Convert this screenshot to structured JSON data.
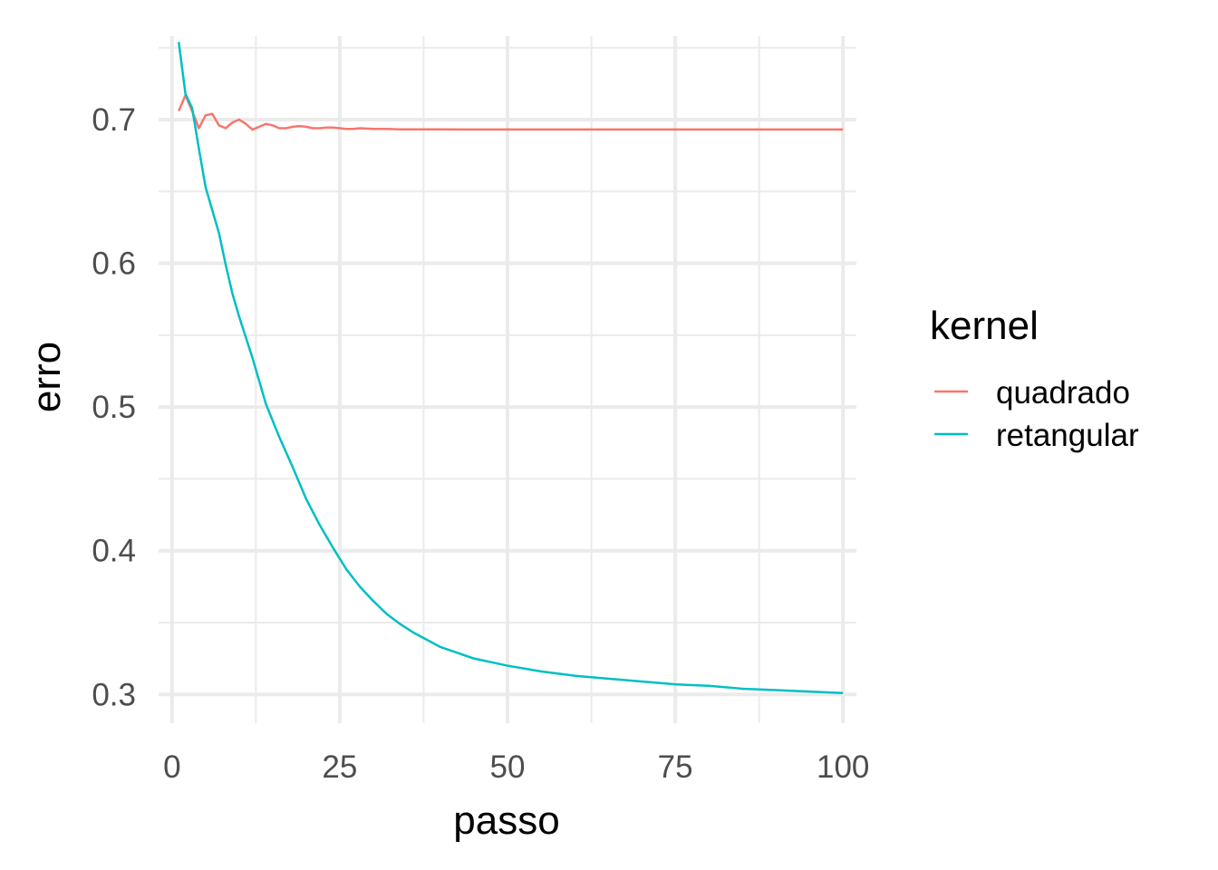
{
  "chart_data": {
    "type": "line",
    "title": "",
    "xlabel": "passo",
    "ylabel": "erro",
    "xlim": [
      -2,
      102
    ],
    "ylim": [
      0.28,
      0.758
    ],
    "x_ticks": [
      {
        "value": 0,
        "label": "0"
      },
      {
        "value": 25,
        "label": "25"
      },
      {
        "value": 50,
        "label": "50"
      },
      {
        "value": 75,
        "label": "75"
      },
      {
        "value": 100,
        "label": "100"
      }
    ],
    "x_minor_ticks": [
      12.5,
      37.5,
      62.5,
      87.5
    ],
    "y_ticks": [
      {
        "value": 0.3,
        "label": "0.3"
      },
      {
        "value": 0.4,
        "label": "0.4"
      },
      {
        "value": 0.5,
        "label": "0.5"
      },
      {
        "value": 0.6,
        "label": "0.6"
      },
      {
        "value": 0.7,
        "label": "0.7"
      }
    ],
    "y_minor_ticks": [
      0.35,
      0.45,
      0.55,
      0.65,
      0.75
    ],
    "grid": true,
    "legend": {
      "title": "kernel",
      "position": "right"
    },
    "series": [
      {
        "name": "quadrado",
        "color": "#F8766D",
        "points": [
          [
            1,
            0.706
          ],
          [
            2,
            0.717
          ],
          [
            3,
            0.706
          ],
          [
            4,
            0.694
          ],
          [
            5,
            0.703
          ],
          [
            6,
            0.704
          ],
          [
            7,
            0.696
          ],
          [
            8,
            0.694
          ],
          [
            9,
            0.698
          ],
          [
            10,
            0.7
          ],
          [
            11,
            0.697
          ],
          [
            12,
            0.693
          ],
          [
            13,
            0.695
          ],
          [
            14,
            0.697
          ],
          [
            15,
            0.696
          ],
          [
            16,
            0.694
          ],
          [
            17,
            0.694
          ],
          [
            18,
            0.695
          ],
          [
            19,
            0.6955
          ],
          [
            20,
            0.695
          ],
          [
            21,
            0.694
          ],
          [
            22,
            0.694
          ],
          [
            23,
            0.6945
          ],
          [
            24,
            0.6945
          ],
          [
            25,
            0.694
          ],
          [
            26,
            0.6935
          ],
          [
            27,
            0.6935
          ],
          [
            28,
            0.694
          ],
          [
            30,
            0.6935
          ],
          [
            32,
            0.6935
          ],
          [
            34,
            0.6932
          ],
          [
            36,
            0.6932
          ],
          [
            40,
            0.6932
          ],
          [
            45,
            0.6931
          ],
          [
            50,
            0.6931
          ],
          [
            60,
            0.6931
          ],
          [
            70,
            0.6931
          ],
          [
            80,
            0.6931
          ],
          [
            90,
            0.6931
          ],
          [
            100,
            0.6931
          ]
        ]
      },
      {
        "name": "retangular",
        "color": "#00BFC4",
        "points": [
          [
            1,
            0.754
          ],
          [
            2,
            0.718
          ],
          [
            3,
            0.708
          ],
          [
            4,
            0.68
          ],
          [
            5,
            0.653
          ],
          [
            6,
            0.637
          ],
          [
            7,
            0.621
          ],
          [
            8,
            0.599
          ],
          [
            9,
            0.579
          ],
          [
            10,
            0.563
          ],
          [
            12,
            0.534
          ],
          [
            14,
            0.502
          ],
          [
            16,
            0.479
          ],
          [
            18,
            0.458
          ],
          [
            20,
            0.436
          ],
          [
            22,
            0.418
          ],
          [
            24,
            0.402
          ],
          [
            26,
            0.387
          ],
          [
            28,
            0.375
          ],
          [
            30,
            0.365
          ],
          [
            32,
            0.356
          ],
          [
            34,
            0.349
          ],
          [
            36,
            0.343
          ],
          [
            38,
            0.338
          ],
          [
            40,
            0.333
          ],
          [
            45,
            0.325
          ],
          [
            50,
            0.32
          ],
          [
            55,
            0.316
          ],
          [
            60,
            0.313
          ],
          [
            65,
            0.311
          ],
          [
            70,
            0.309
          ],
          [
            75,
            0.307
          ],
          [
            80,
            0.306
          ],
          [
            85,
            0.304
          ],
          [
            90,
            0.303
          ],
          [
            95,
            0.302
          ],
          [
            100,
            0.301
          ]
        ]
      }
    ]
  }
}
